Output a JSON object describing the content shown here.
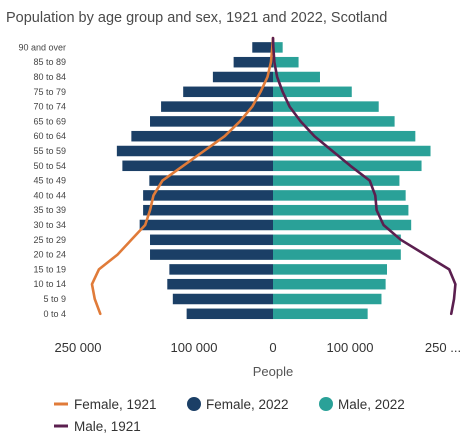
{
  "chart_data": {
    "type": "bar",
    "title": "Population by age group and sex, 1921 and 2022, Scotland",
    "xlabel": "People",
    "categories": [
      "0 to 4",
      "5 to 9",
      "10 to 14",
      "15 to 19",
      "20 to 24",
      "25 to 29",
      "30 to 34",
      "35 to 39",
      "40 to 44",
      "45 to 49",
      "50 to 54",
      "55 to 59",
      "60 to 64",
      "65 to 69",
      "70 to 74",
      "75 to 79",
      "80 to 84",
      "85 to 89",
      "90 and over"
    ],
    "x_ticks": [
      "250 000",
      "100 000",
      "0",
      "100 000",
      "250 ..."
    ],
    "xlim": [
      -275000,
      275000
    ],
    "series": [
      {
        "name": "Female, 2022",
        "kind": "bar",
        "side": "left",
        "color": "#1b3f66",
        "values": [
          125000,
          145000,
          153000,
          150000,
          178000,
          178000,
          193000,
          188000,
          188000,
          179000,
          218000,
          226000,
          205000,
          178000,
          162000,
          130000,
          87000,
          57000,
          30000
        ]
      },
      {
        "name": "Male, 2022",
        "kind": "bar",
        "side": "right",
        "color": "#2aa198",
        "values": [
          137000,
          157000,
          163000,
          165000,
          185000,
          185000,
          200000,
          196000,
          192000,
          183000,
          215000,
          228000,
          206000,
          176000,
          153000,
          114000,
          68000,
          37000,
          14000
        ]
      },
      {
        "name": "Female, 1921",
        "kind": "line",
        "side": "left",
        "color": "#e07b39",
        "values": [
          250000,
          258000,
          262000,
          252000,
          225000,
          205000,
          185000,
          178000,
          173000,
          160000,
          130000,
          100000,
          70000,
          48000,
          30000,
          18000,
          8000,
          3000,
          1000
        ]
      },
      {
        "name": "Male, 1921",
        "kind": "line",
        "side": "right",
        "color": "#5b1f4f",
        "values": [
          258000,
          262000,
          264000,
          255000,
          220000,
          185000,
          160000,
          150000,
          148000,
          140000,
          112000,
          86000,
          60000,
          40000,
          24000,
          14000,
          6000,
          2000,
          500
        ]
      }
    ],
    "legend": {
      "position": "bottom",
      "order": [
        "Female, 1921",
        "Female, 2022",
        "Male, 2022",
        "Male, 1921"
      ]
    },
    "grid": false
  }
}
